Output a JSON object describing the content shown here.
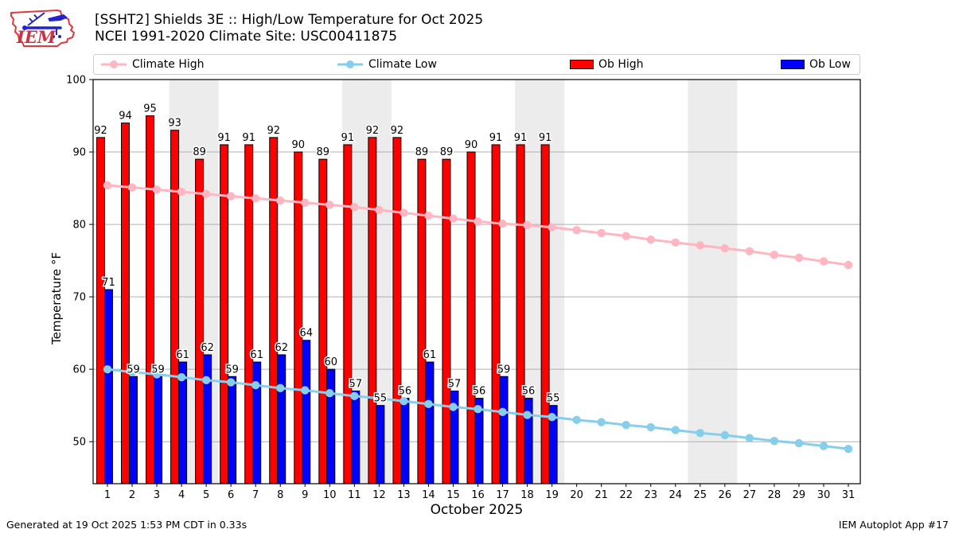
{
  "header": {
    "logo_text": "IEM"
  },
  "legend": {
    "items": [
      {
        "label": "Climate High",
        "type": "line",
        "color": "#ffb6c1"
      },
      {
        "label": "Climate Low",
        "type": "line",
        "color": "#87ceeb"
      },
      {
        "label": "Ob High",
        "type": "patch",
        "color": "#ff0000"
      },
      {
        "label": "Ob Low",
        "type": "patch",
        "color": "#0000ff"
      }
    ]
  },
  "chart_data": {
    "type": "bar",
    "title": "[SSHT2] Shields 3E :: High/Low Temperature for Oct 2025",
    "subtitle": "NCEI 1991-2020 Climate Site: USC00411875",
    "xlabel": "October 2025",
    "ylabel": "Temperature °F",
    "x": [
      1,
      2,
      3,
      4,
      5,
      6,
      7,
      8,
      9,
      10,
      11,
      12,
      13,
      14,
      15,
      16,
      17,
      18,
      19,
      20,
      21,
      22,
      23,
      24,
      25,
      26,
      27,
      28,
      29,
      30,
      31
    ],
    "ylim": [
      44.2,
      100
    ],
    "yticks": [
      50,
      60,
      70,
      80,
      90,
      100
    ],
    "grid": "horizontal",
    "legend_position": "top",
    "weekend_shading_days": [
      [
        4,
        5
      ],
      [
        11,
        12
      ],
      [
        18,
        19
      ],
      [
        25,
        26
      ]
    ],
    "weekend_band_color": "#ececec",
    "series": [
      {
        "name": "Climate High",
        "type": "line",
        "color": "#ffb6c1",
        "values": [
          85.4,
          85.1,
          84.8,
          84.5,
          84.2,
          83.9,
          83.6,
          83.3,
          83.0,
          82.7,
          82.4,
          82.0,
          81.6,
          81.2,
          80.8,
          80.4,
          80.1,
          79.9,
          79.6,
          79.2,
          78.8,
          78.4,
          77.9,
          77.5,
          77.1,
          76.7,
          76.3,
          75.8,
          75.4,
          74.9,
          74.4
        ]
      },
      {
        "name": "Climate Low",
        "type": "line",
        "color": "#87ceeb",
        "values": [
          60.0,
          59.6,
          59.3,
          58.9,
          58.5,
          58.2,
          57.8,
          57.4,
          57.1,
          56.7,
          56.3,
          56.0,
          55.6,
          55.2,
          54.8,
          54.5,
          54.1,
          53.7,
          53.4,
          53.0,
          52.7,
          52.3,
          52.0,
          51.6,
          51.2,
          50.9,
          50.5,
          50.1,
          49.8,
          49.4,
          49.0
        ]
      },
      {
        "name": "Ob High",
        "type": "bar",
        "color": "#ff0000",
        "values": [
          92,
          94,
          95,
          93,
          89,
          91,
          91,
          92,
          90,
          89,
          91,
          92,
          92,
          89,
          89,
          90,
          91,
          91,
          91,
          null,
          null,
          null,
          null,
          null,
          null,
          null,
          null,
          null,
          null,
          null,
          null
        ]
      },
      {
        "name": "Ob Low",
        "type": "bar",
        "color": "#0000ff",
        "values": [
          71,
          59,
          59,
          61,
          62,
          59,
          61,
          62,
          64,
          60,
          57,
          55,
          56,
          61,
          57,
          56,
          59,
          56,
          55,
          null,
          null,
          null,
          null,
          null,
          null,
          null,
          null,
          null,
          null,
          null,
          null
        ]
      }
    ]
  },
  "footer": {
    "generated": "Generated at 19 Oct 2025 1:53 PM CDT in 0.33s",
    "app": "IEM Autoplot App #17"
  }
}
